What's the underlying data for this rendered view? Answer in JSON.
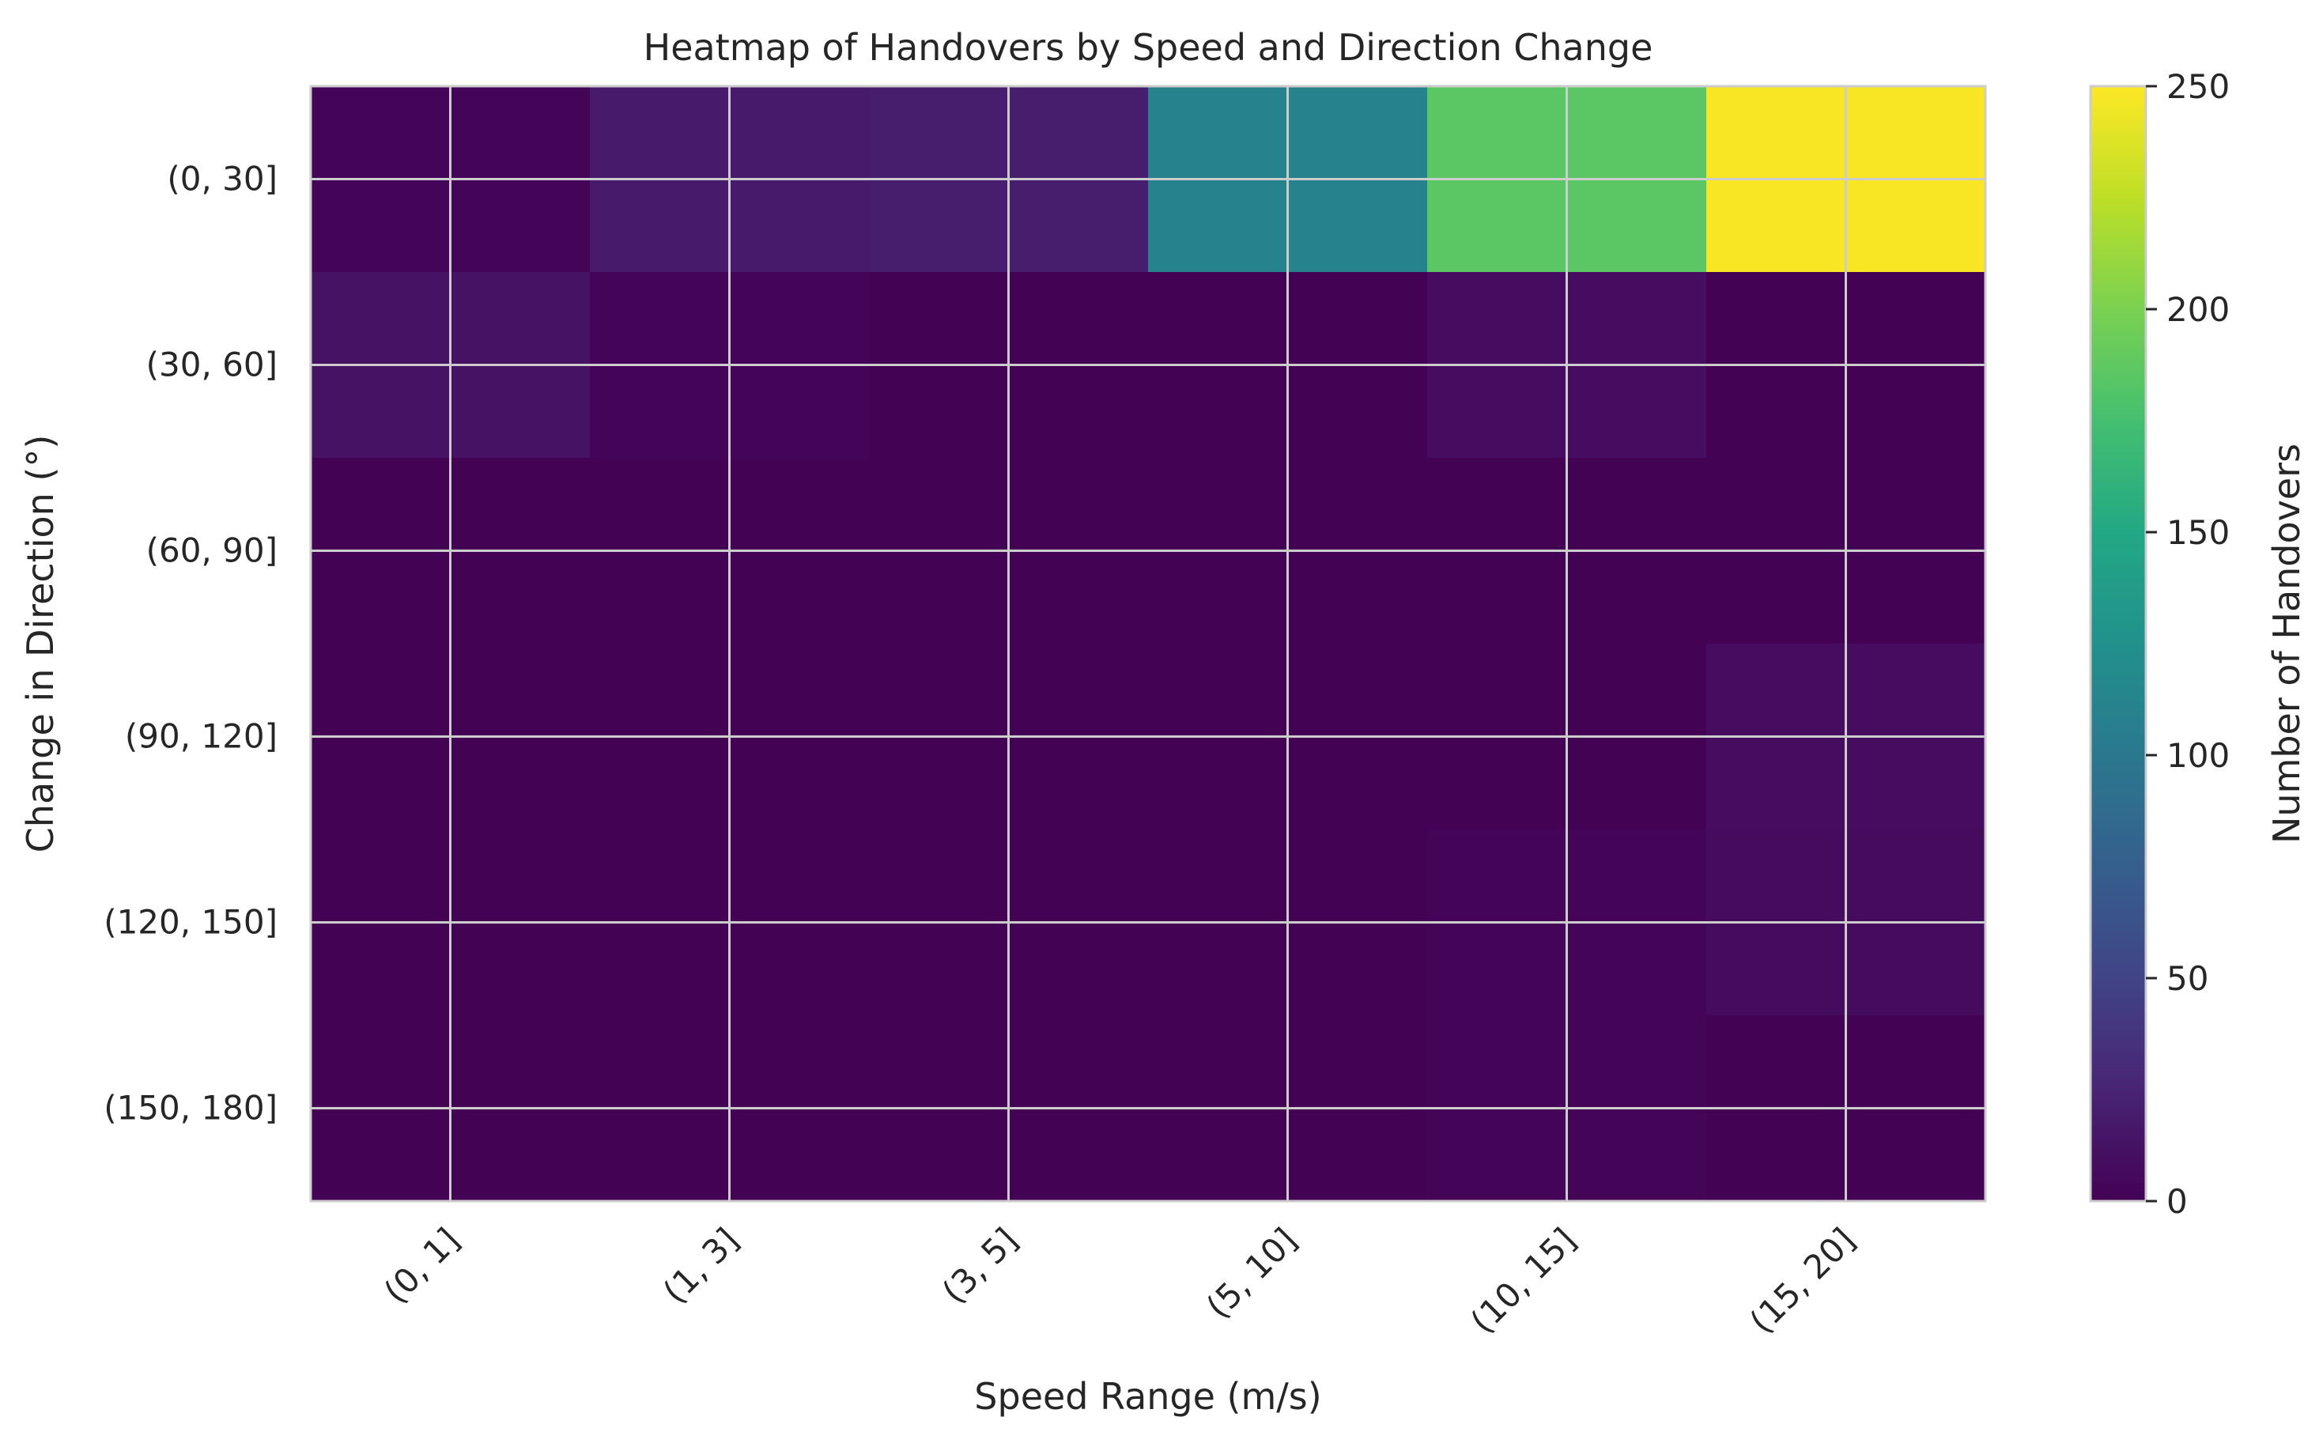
{
  "chart_data": {
    "type": "heatmap",
    "title": "Heatmap of Handovers by Speed and Direction Change",
    "xlabel": "Speed Range (m/s)",
    "ylabel": "Change in Direction (°)",
    "x_categories": [
      "(0, 1]",
      "(1, 3]",
      "(3, 5]",
      "(5, 10]",
      "(10, 15]",
      "(15, 20]"
    ],
    "y_categories": [
      "(0, 30]",
      "(30, 60]",
      "(60, 90]",
      "(90, 120]",
      "(120, 150]",
      "(150, 180]"
    ],
    "values": [
      [
        2,
        18,
        20,
        110,
        185,
        248
      ],
      [
        12,
        3,
        1,
        1,
        8,
        1
      ],
      [
        1,
        1,
        1,
        1,
        1,
        1
      ],
      [
        1,
        1,
        1,
        1,
        1,
        8
      ],
      [
        1,
        1,
        1,
        1,
        2,
        7
      ],
      [
        1,
        1,
        1,
        1,
        2,
        1
      ]
    ],
    "colormap": "viridis",
    "colorbar": {
      "label": "Number of Handovers",
      "range": [
        0,
        250
      ],
      "ticks": [
        0,
        50,
        100,
        150,
        200,
        250
      ]
    },
    "grid": true
  }
}
